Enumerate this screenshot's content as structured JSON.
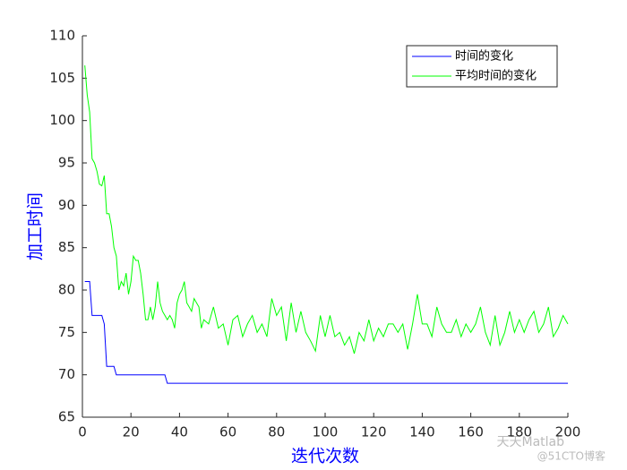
{
  "chart_data": {
    "type": "line",
    "xlabel": "迭代次数",
    "ylabel": "加工时间",
    "xlim": [
      0,
      200
    ],
    "xticks": [
      0,
      20,
      40,
      60,
      80,
      100,
      120,
      140,
      160,
      180,
      200
    ],
    "ylim": [
      65,
      110
    ],
    "yticks": [
      65,
      70,
      75,
      80,
      85,
      90,
      95,
      100,
      105,
      110
    ],
    "legend": "top-right",
    "series": [
      {
        "name": "时间的变化",
        "color": "#0000ff",
        "x": [
          1,
          3,
          4,
          8,
          9,
          10,
          13,
          14,
          34,
          35,
          200
        ],
        "values": [
          81,
          81,
          77,
          77,
          76,
          71,
          71,
          70,
          70,
          69,
          69
        ]
      },
      {
        "name": "平均时间的变化",
        "color": "#00ff00",
        "x": [
          1,
          2,
          3,
          4,
          5,
          6,
          7,
          8,
          9,
          10,
          11,
          12,
          13,
          14,
          15,
          16,
          17,
          18,
          19,
          20,
          21,
          22,
          23,
          24,
          25,
          26,
          27,
          28,
          29,
          30,
          31,
          32,
          33,
          34,
          35,
          36,
          37,
          38,
          39,
          40,
          41,
          42,
          43,
          44,
          45,
          46,
          47,
          48,
          49,
          50,
          52,
          54,
          56,
          58,
          60,
          62,
          64,
          66,
          68,
          70,
          72,
          74,
          76,
          78,
          80,
          82,
          84,
          86,
          88,
          90,
          92,
          94,
          96,
          98,
          100,
          102,
          104,
          106,
          108,
          110,
          112,
          114,
          116,
          118,
          120,
          122,
          124,
          126,
          128,
          130,
          132,
          134,
          136,
          138,
          140,
          142,
          144,
          146,
          148,
          150,
          152,
          154,
          156,
          158,
          160,
          162,
          164,
          166,
          168,
          170,
          172,
          174,
          176,
          178,
          180,
          182,
          184,
          186,
          188,
          190,
          192,
          194,
          196,
          198,
          200
        ],
        "values": [
          106.5,
          103,
          101,
          95.5,
          95,
          94,
          92.5,
          92.3,
          93.5,
          89,
          89,
          87.5,
          85,
          84,
          80,
          81,
          80.5,
          82,
          79.5,
          81,
          84,
          83.5,
          83.5,
          82,
          79.5,
          76.5,
          76.5,
          78,
          76.5,
          78,
          81,
          78.5,
          77.5,
          77,
          76.5,
          77,
          76.5,
          75.5,
          78.5,
          79.5,
          80,
          81,
          78.5,
          78,
          77.5,
          79,
          78.5,
          78,
          75.5,
          76.5,
          76,
          78,
          75.5,
          76,
          73.5,
          76.5,
          77,
          74.5,
          76,
          77,
          75,
          76,
          74.5,
          79,
          77,
          78,
          74,
          78.5,
          75,
          77.5,
          75,
          74,
          72.8,
          77,
          74.5,
          77,
          74.5,
          75,
          73.5,
          74.5,
          72.5,
          75,
          74,
          76.5,
          74,
          75.5,
          74.5,
          76,
          76,
          75,
          76,
          73,
          76,
          79.5,
          76,
          76,
          74.5,
          78,
          76,
          75,
          75,
          76.5,
          74.5,
          76,
          75,
          76,
          78,
          75,
          73.5,
          77,
          73.5,
          75,
          77.5,
          75,
          76.5,
          75,
          76.5,
          77.5,
          75,
          76,
          78,
          74.5,
          75.5,
          77,
          76
        ]
      }
    ]
  },
  "watermark": [
    "天天Matlab",
    "@51CTO博客"
  ]
}
